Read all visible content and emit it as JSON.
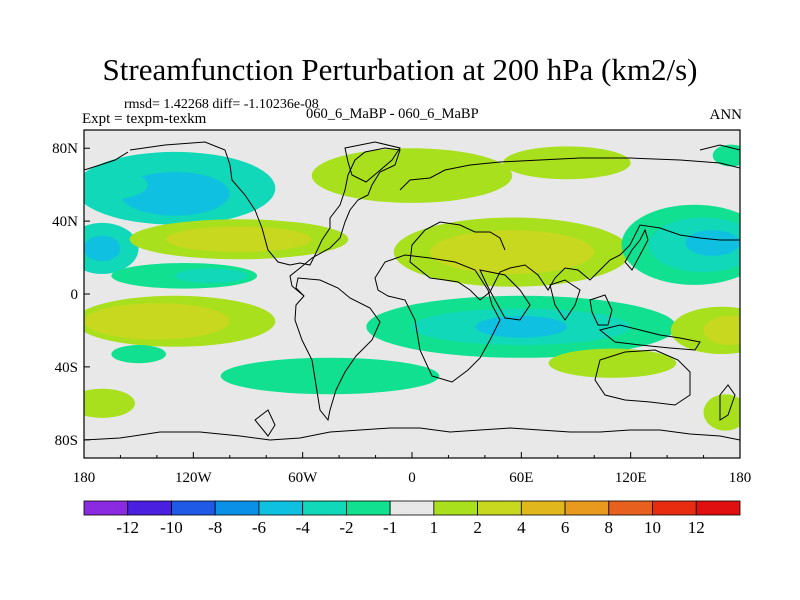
{
  "chart_data": {
    "type": "heatmap",
    "title": "Streamfunction Perturbation at 200 hPa (km2/s)",
    "stats_text": "rmsd= 1.42268  diff= -1.10236e-08",
    "experiment_text": "Expt = texpm-texkm",
    "case_text": "060_6_MaBP - 060_6_MaBP",
    "season": "ANN",
    "x_axis": {
      "range": [
        -180,
        180
      ],
      "ticks": [
        -180,
        -120,
        -60,
        0,
        60,
        120,
        180
      ],
      "tick_labels": [
        "180",
        "120W",
        "60W",
        "0",
        "60E",
        "120E",
        "180"
      ]
    },
    "y_axis": {
      "range": [
        -90,
        90
      ],
      "ticks": [
        80,
        40,
        0,
        -40,
        -80
      ],
      "tick_labels": [
        "80N",
        "40N",
        "0",
        "40S",
        "80S"
      ]
    },
    "colorbar": {
      "levels": [
        "-12",
        "-10",
        "-8",
        "-6",
        "-4",
        "-2",
        "-1",
        "1",
        "2",
        "4",
        "6",
        "8",
        "10",
        "12"
      ],
      "colors": [
        "#8a2be2",
        "#4b1fe0",
        "#1e5ae6",
        "#0a90e6",
        "#10c0e0",
        "#10d8b8",
        "#10e090",
        "#e8e8e8",
        "#a8e01e",
        "#c8d81e",
        "#e0b81e",
        "#e89a1e",
        "#e8601e",
        "#e82c10",
        "#e01010"
      ]
    },
    "field_features": [
      {
        "lon": -130,
        "lat": 58,
        "rx": 55,
        "ry": 20,
        "level": -3
      },
      {
        "lon": -130,
        "lat": 55,
        "rx": 30,
        "ry": 12,
        "level": -5
      },
      {
        "lon": -165,
        "lat": 60,
        "rx": 20,
        "ry": 8,
        "level": -3
      },
      {
        "lon": -170,
        "lat": 25,
        "rx": 20,
        "ry": 14,
        "level": -4
      },
      {
        "lon": -170,
        "lat": 25,
        "rx": 10,
        "ry": 7,
        "level": -6
      },
      {
        "lon": -125,
        "lat": 10,
        "rx": 40,
        "ry": 7,
        "level": -2
      },
      {
        "lon": -110,
        "lat": 10,
        "rx": 20,
        "ry": 4,
        "level": -4
      },
      {
        "lon": -95,
        "lat": 30,
        "rx": 60,
        "ry": 11,
        "level": 1.5
      },
      {
        "lon": -95,
        "lat": 30,
        "rx": 40,
        "ry": 7,
        "level": 2.5
      },
      {
        "lon": -130,
        "lat": -15,
        "rx": 55,
        "ry": 14,
        "level": 1.5
      },
      {
        "lon": -140,
        "lat": -15,
        "rx": 40,
        "ry": 10,
        "level": 3
      },
      {
        "lon": -150,
        "lat": -33,
        "rx": 15,
        "ry": 5,
        "level": -1.5
      },
      {
        "lon": -45,
        "lat": -45,
        "rx": 60,
        "ry": 10,
        "level": -1.5
      },
      {
        "lon": -170,
        "lat": -60,
        "rx": 18,
        "ry": 8,
        "level": 1.5
      },
      {
        "lon": 0,
        "lat": 65,
        "rx": 55,
        "ry": 15,
        "level": 1.5
      },
      {
        "lon": 55,
        "lat": 23,
        "rx": 65,
        "ry": 19,
        "level": 1.5
      },
      {
        "lon": 55,
        "lat": 23,
        "rx": 45,
        "ry": 12,
        "level": 3
      },
      {
        "lon": 85,
        "lat": 72,
        "rx": 35,
        "ry": 9,
        "level": 1.5
      },
      {
        "lon": 60,
        "lat": -18,
        "rx": 85,
        "ry": 17,
        "level": -1.5
      },
      {
        "lon": 60,
        "lat": -18,
        "rx": 60,
        "ry": 10,
        "level": -3
      },
      {
        "lon": 60,
        "lat": -18,
        "rx": 25,
        "ry": 6,
        "level": -5
      },
      {
        "lon": 110,
        "lat": -38,
        "rx": 35,
        "ry": 8,
        "level": 1.5
      },
      {
        "lon": 155,
        "lat": 27,
        "rx": 40,
        "ry": 22,
        "level": -1.5
      },
      {
        "lon": 160,
        "lat": 27,
        "rx": 30,
        "ry": 15,
        "level": -3
      },
      {
        "lon": 165,
        "lat": 28,
        "rx": 15,
        "ry": 7,
        "level": -5
      },
      {
        "lon": 170,
        "lat": -20,
        "rx": 28,
        "ry": 13,
        "level": 1.5
      },
      {
        "lon": 175,
        "lat": -20,
        "rx": 15,
        "ry": 8,
        "level": 3
      },
      {
        "lon": 175,
        "lat": 76,
        "rx": 10,
        "ry": 6,
        "level": -1.5
      },
      {
        "lon": 172,
        "lat": -65,
        "rx": 12,
        "ry": 10,
        "level": 1.5
      }
    ]
  }
}
